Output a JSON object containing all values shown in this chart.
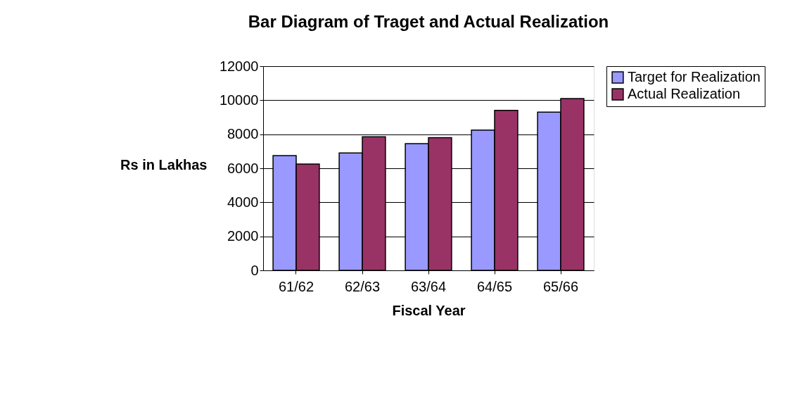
{
  "chart_data": {
    "type": "bar",
    "title": "Bar Diagram of Traget and Actual Realization",
    "xlabel": "Fiscal Year",
    "ylabel": "Rs in Lakhas",
    "categories": [
      "61/62",
      "62/63",
      "63/64",
      "64/65",
      "65/66"
    ],
    "series": [
      {
        "name": "Target for Realization",
        "color": "#9999ff",
        "values": [
          6750,
          6900,
          7450,
          8250,
          9300
        ]
      },
      {
        "name": "Actual Realization",
        "color": "#993366",
        "values": [
          6250,
          7850,
          7800,
          9400,
          10100
        ]
      }
    ],
    "ylim": [
      0,
      12000
    ],
    "yticks": [
      0,
      2000,
      4000,
      6000,
      8000,
      10000,
      12000
    ],
    "grid": "y",
    "legend": "right"
  }
}
